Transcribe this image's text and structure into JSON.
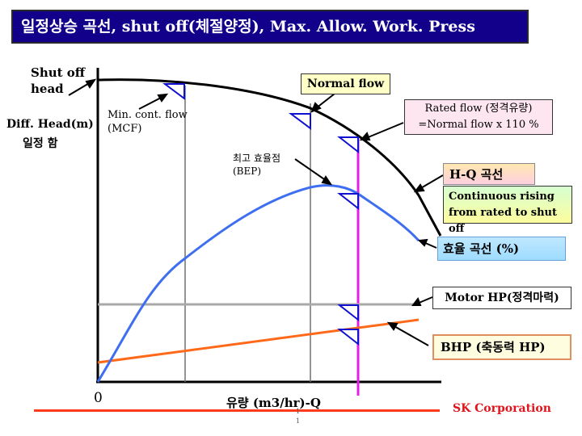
{
  "title": "일정상승 곡선, shut off(체절양정), Max. Allow. Work. Press",
  "labels": {
    "shut_off_head": [
      "Shut off",
      "head"
    ],
    "diff_head": "Diff. Head(m)",
    "diff_head_kr": "일정 함",
    "mcf": [
      "Min. cont. flow",
      "(MCF)"
    ],
    "bep": [
      "최고 효율점",
      "(BEP)"
    ],
    "origin": "0",
    "x_axis": "유량 (m3/hr)-Q"
  },
  "boxes": {
    "normal_flow": "Normal flow",
    "rated_flow": [
      "Rated flow (정격유량)",
      "=Normal flow x 110 %"
    ],
    "hq_curve": "H-Q 곡선",
    "continuous_rising": [
      "Continuous rising",
      "from rated to shut off"
    ],
    "eff_curve": "효율 곡선 (%)",
    "motor_hp": "Motor HP(정격마력)",
    "bhp": "BHP (축동력 HP)"
  },
  "footer": {
    "brand": "SK Corporation",
    "page": [
      "1",
      "1"
    ]
  },
  "colors": {
    "title_bg": "#12008a",
    "hq_curve": "#000000",
    "efficiency_curve": "#3f6ff0",
    "bhp_line": "#ff6a1a",
    "motor_hp_line": "#a8a8a8",
    "rated_flow_line": "#e81ce8",
    "marker": "#1010d0",
    "brand": "#e0141c"
  }
}
